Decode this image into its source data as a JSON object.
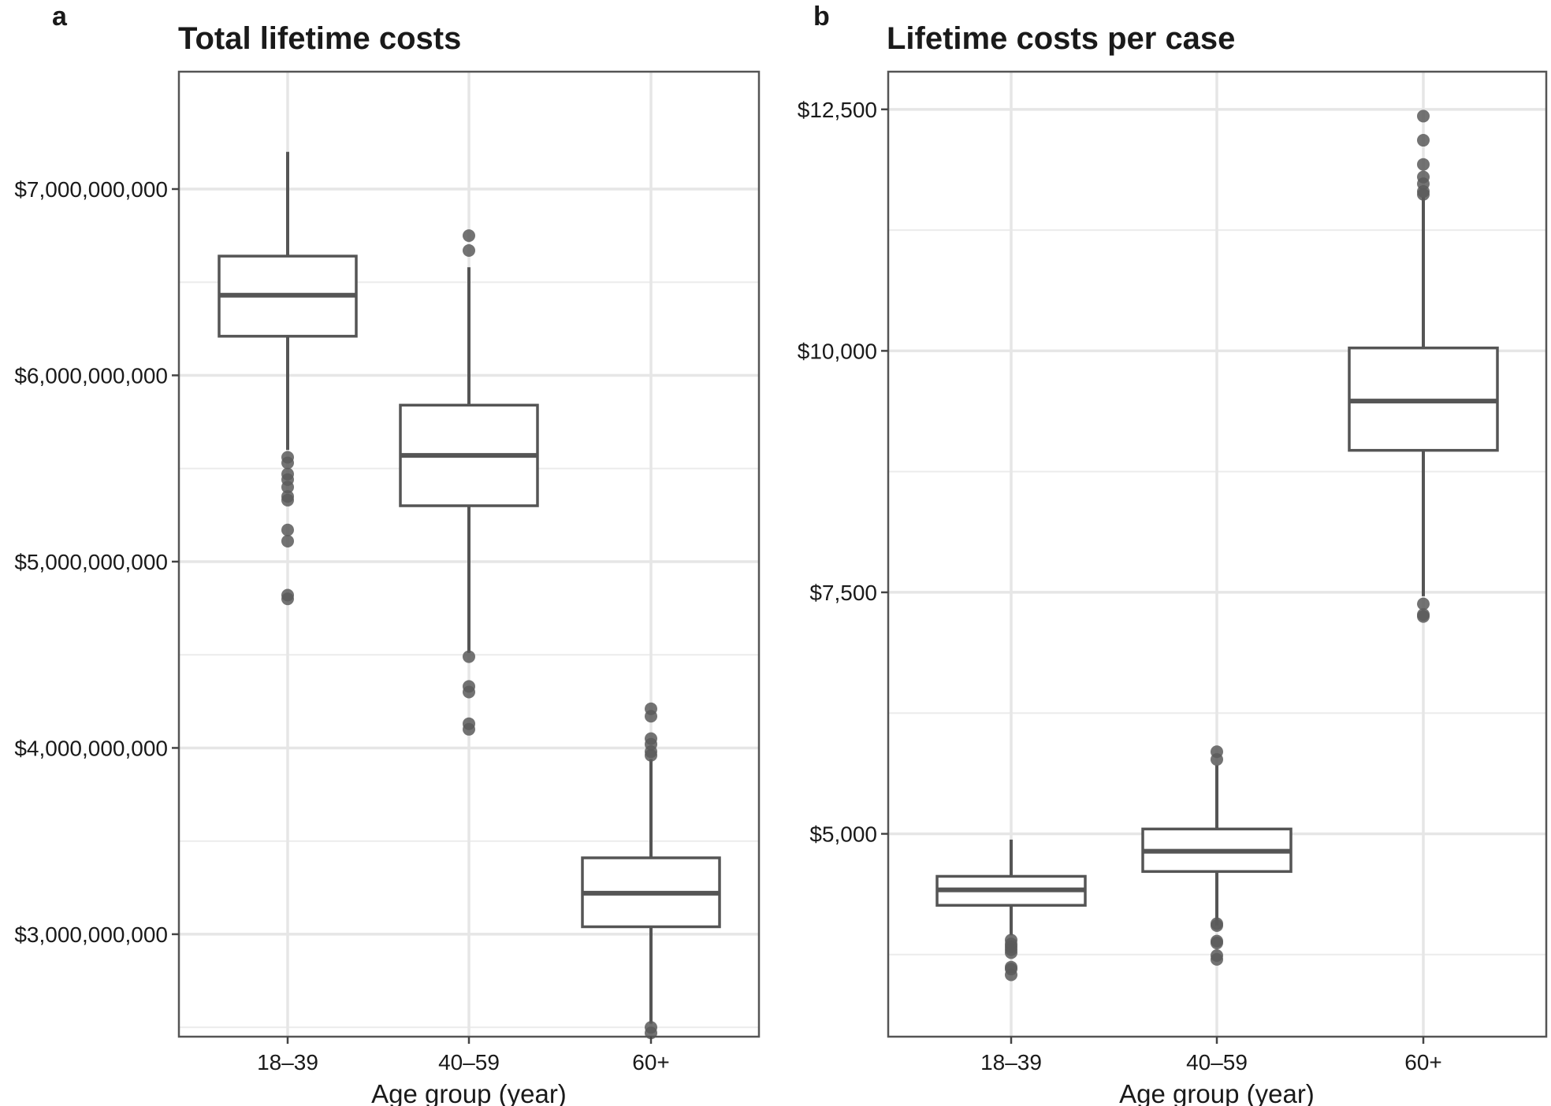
{
  "chart_data": [
    {
      "panel": "a",
      "type": "box",
      "title": "Total lifetime costs",
      "xlabel": "Age group (year)",
      "ylabel": "",
      "ylim": [
        2450000000,
        7630000000
      ],
      "yticks": [
        3000000000,
        4000000000,
        5000000000,
        6000000000,
        7000000000
      ],
      "ytick_labels": [
        "$3,000,000,000",
        "$4,000,000,000",
        "$5,000,000,000",
        "$6,000,000,000",
        "$7,000,000,000"
      ],
      "minor_gridlines": [
        2500000000,
        3500000000,
        4500000000,
        5500000000,
        6500000000
      ],
      "grid": true,
      "categories": [
        "18–39",
        "40–59",
        "60+"
      ],
      "boxes": [
        {
          "category": "18–39",
          "whisker_low": 5600000000,
          "q1": 6210000000,
          "median": 6430000000,
          "q3": 6640000000,
          "whisker_high": 7200000000,
          "outliers": [
            5560000000,
            5530000000,
            5470000000,
            5440000000,
            5400000000,
            5350000000,
            5330000000,
            5170000000,
            5110000000,
            4820000000,
            4800000000
          ]
        },
        {
          "category": "40–59",
          "whisker_low": 4510000000,
          "q1": 5300000000,
          "median": 5570000000,
          "q3": 5840000000,
          "whisker_high": 6580000000,
          "outliers": [
            6750000000,
            6670000000,
            4490000000,
            4330000000,
            4300000000,
            4130000000,
            4100000000
          ]
        },
        {
          "category": "60+",
          "whisker_low": 2520000000,
          "q1": 3040000000,
          "median": 3220000000,
          "q3": 3410000000,
          "whisker_high": 3940000000,
          "outliers": [
            4210000000,
            4170000000,
            4050000000,
            4020000000,
            3980000000,
            3960000000,
            2500000000,
            2470000000
          ]
        }
      ]
    },
    {
      "panel": "b",
      "type": "box",
      "title": "Lifetime costs per case",
      "xlabel": "Age group (year)",
      "ylabel": "",
      "ylim": [
        2900,
        12890
      ],
      "yticks": [
        5000,
        7500,
        10000,
        12500
      ],
      "ytick_labels": [
        "$5,000",
        "$7,500",
        "$10,000",
        "$12,500"
      ],
      "minor_gridlines": [
        3750,
        6250,
        8750,
        11250
      ],
      "grid": true,
      "categories": [
        "18–39",
        "40–59",
        "60+"
      ],
      "boxes": [
        {
          "category": "18–39",
          "whisker_low": 3950.0,
          "q1": 4260,
          "median": 4420,
          "q3": 4560,
          "whisker_high": 4940,
          "outliers": [
            3900,
            3860,
            3830,
            3800,
            3770,
            3620,
            3600,
            3540
          ]
        },
        {
          "category": "40–59",
          "whisker_low": 4050,
          "q1": 4610,
          "median": 4820,
          "q3": 5050,
          "whisker_high": 5710,
          "outliers": [
            5850,
            5770,
            4070,
            4050,
            3890,
            3870,
            3740,
            3700
          ]
        },
        {
          "category": "60+",
          "whisker_low": 7460,
          "q1": 8970,
          "median": 9480,
          "q3": 10030,
          "whisker_high": 11590,
          "outliers": [
            12430,
            12180,
            11930,
            11800,
            11730,
            11650,
            11620,
            7380,
            7270,
            7250
          ]
        }
      ]
    }
  ]
}
